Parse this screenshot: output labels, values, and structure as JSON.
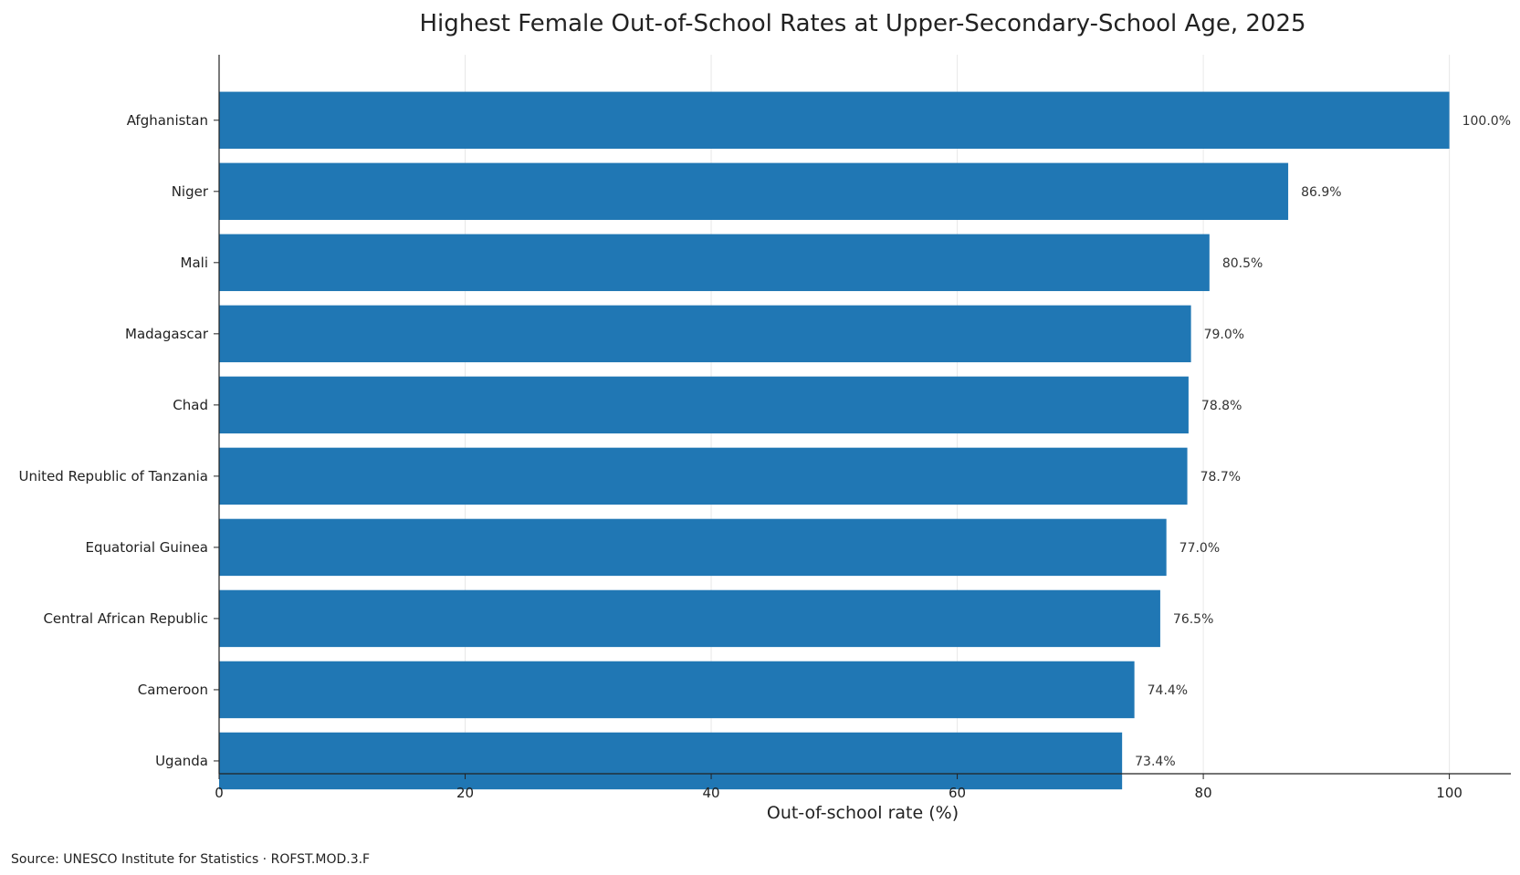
{
  "chart_data": {
    "type": "bar",
    "orientation": "horizontal",
    "title": "Highest Female Out-of-School Rates at Upper-Secondary-School Age, 2025",
    "xlabel": "Out-of-school rate (%)",
    "ylabel": "",
    "categories": [
      "Afghanistan",
      "Niger",
      "Mali",
      "Madagascar",
      "Chad",
      "United Republic of Tanzania",
      "Equatorial Guinea",
      "Central African Republic",
      "Cameroon",
      "Uganda"
    ],
    "values": [
      100.0,
      86.9,
      80.5,
      79.0,
      78.8,
      78.7,
      77.0,
      76.5,
      74.4,
      73.4
    ],
    "value_labels": [
      "100.0%",
      "86.9%",
      "80.5%",
      "79.0%",
      "78.8%",
      "78.7%",
      "77.0%",
      "76.5%",
      "74.4%",
      "73.4%"
    ],
    "xlim": [
      0,
      105
    ],
    "xticks": [
      0,
      20,
      40,
      60,
      80,
      100
    ],
    "xtick_labels": [
      "0",
      "20",
      "40",
      "60",
      "80",
      "100"
    ],
    "grid": "vertical",
    "bar_color": "#2077b4",
    "source": "Source: UNESCO Institute for Statistics · ROFST.MOD.3.F"
  }
}
